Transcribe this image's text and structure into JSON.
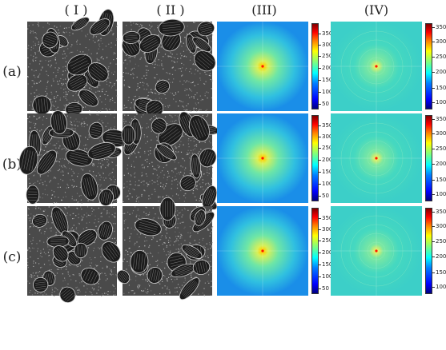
{
  "columns": [
    "( I )",
    "( II )",
    "(III)",
    "(IV)"
  ],
  "rows": [
    {
      "label": "(a)",
      "cbar3": [
        "350",
        "300",
        "250",
        "200",
        "150",
        "100",
        "50"
      ],
      "cbar4": [
        "350",
        "300",
        "250",
        "200",
        "150",
        "100"
      ]
    },
    {
      "label": "(b)",
      "cbar3": [
        "350",
        "300",
        "250",
        "200",
        "150",
        "100",
        "50"
      ],
      "cbar4": [
        "350",
        "300",
        "250",
        "200",
        "150",
        "100"
      ]
    },
    {
      "label": "(c)",
      "cbar3": [
        "350",
        "300",
        "250",
        "200",
        "150",
        "100",
        "50"
      ],
      "cbar4": [
        "350",
        "300",
        "250",
        "200",
        "150",
        "100"
      ]
    }
  ],
  "colors": {
    "fft3_center": "#ff2a00",
    "fft3_mid": "#c8f06a",
    "fft3_edge": "#1fa0f0",
    "fft4_bg": "#3dd3c8"
  }
}
